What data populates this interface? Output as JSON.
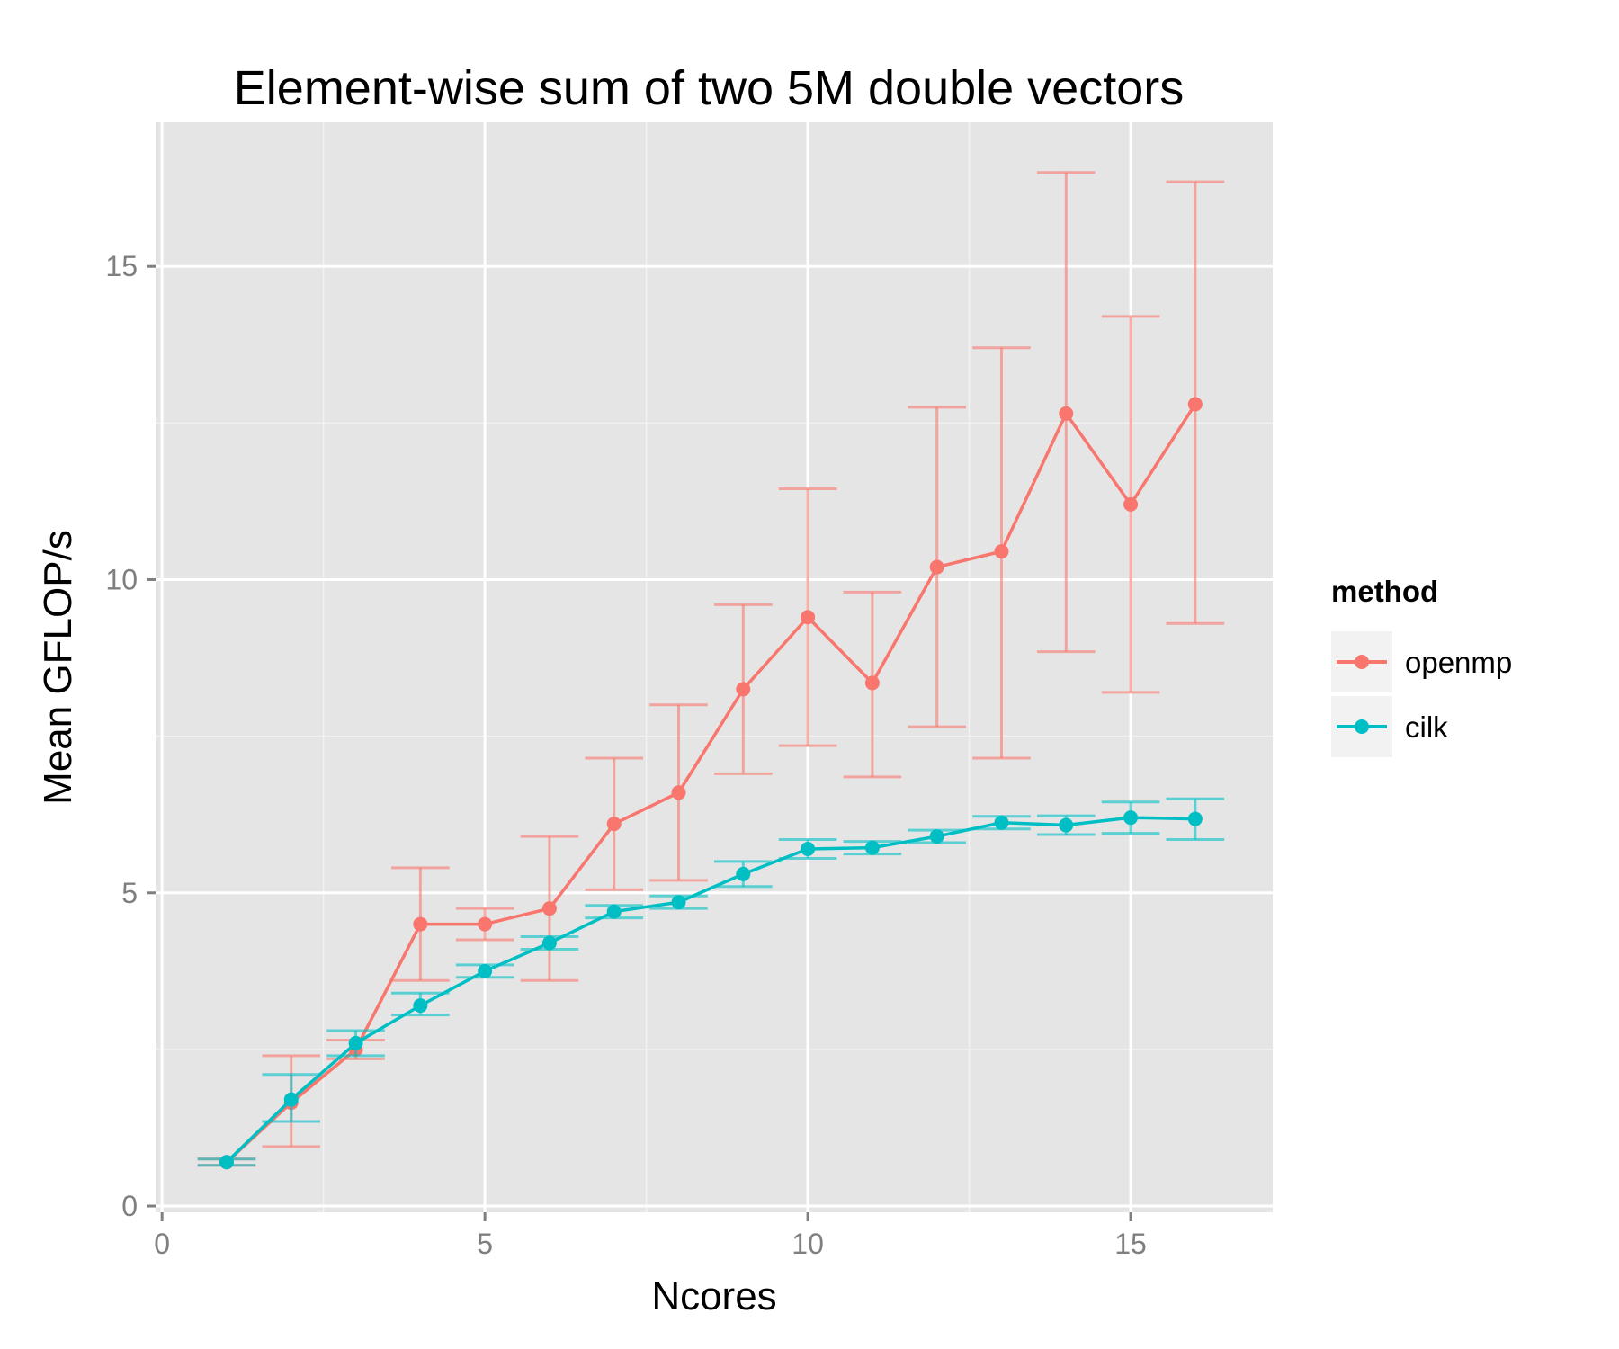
{
  "chart_data": {
    "type": "line",
    "title": "Element-wise sum of two 5M double vectors",
    "xlabel": "Ncores",
    "ylabel": "Mean GFLOP/s",
    "xlim": [
      -0.1,
      17.2
    ],
    "ylim": [
      -0.1,
      17.3
    ],
    "x_ticks": [
      0,
      5,
      10,
      15
    ],
    "y_ticks": [
      0,
      5,
      10,
      15
    ],
    "x_tick_labels": [
      "0",
      "5",
      "10",
      "15"
    ],
    "y_tick_labels": [
      "0",
      "5",
      "10",
      "15"
    ],
    "grid": true,
    "legend": {
      "title": "method",
      "position": "right"
    },
    "x": [
      1,
      2,
      3,
      4,
      5,
      6,
      7,
      8,
      9,
      10,
      11,
      12,
      13,
      14,
      15,
      16
    ],
    "series": [
      {
        "name": "openmp",
        "color": "#F8766D",
        "values": [
          0.7,
          1.65,
          2.5,
          4.5,
          4.5,
          4.75,
          6.1,
          6.6,
          8.25,
          9.4,
          8.35,
          10.2,
          10.45,
          12.65,
          11.2,
          12.8
        ],
        "err_low": [
          0.65,
          0.95,
          2.35,
          3.6,
          4.25,
          3.6,
          5.05,
          5.2,
          6.9,
          7.35,
          6.85,
          7.65,
          7.15,
          8.85,
          8.2,
          9.3
        ],
        "err_high": [
          0.75,
          2.4,
          2.65,
          5.4,
          4.75,
          5.9,
          7.15,
          8.0,
          9.6,
          11.45,
          9.8,
          12.75,
          13.7,
          16.5,
          14.2,
          16.35
        ]
      },
      {
        "name": "cilk",
        "color": "#00BFC4",
        "values": [
          0.7,
          1.7,
          2.6,
          3.2,
          3.75,
          4.2,
          4.7,
          4.85,
          5.3,
          5.7,
          5.72,
          5.9,
          6.12,
          6.08,
          6.2,
          6.18
        ],
        "err_low": [
          0.65,
          1.35,
          2.4,
          3.05,
          3.65,
          4.1,
          4.6,
          4.75,
          5.1,
          5.55,
          5.62,
          5.8,
          6.02,
          5.93,
          5.95,
          5.85
        ],
        "err_high": [
          0.75,
          2.1,
          2.8,
          3.4,
          3.85,
          4.3,
          4.8,
          4.95,
          5.5,
          5.85,
          5.82,
          6.0,
          6.22,
          6.23,
          6.45,
          6.5
        ]
      }
    ]
  }
}
